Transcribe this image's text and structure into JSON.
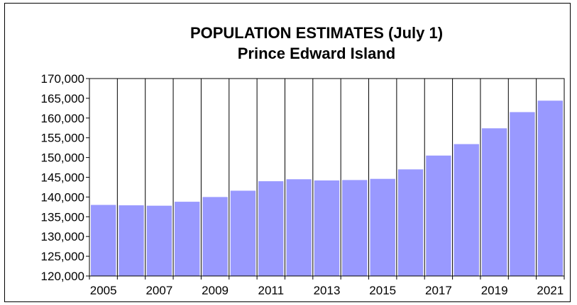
{
  "chart_data": {
    "type": "bar",
    "title": "POPULATION ESTIMATES (July 1)",
    "subtitle": "Prince Edward Island",
    "xlabel": "",
    "ylabel": "",
    "categories": [
      "2005",
      "2006",
      "2007",
      "2008",
      "2009",
      "2010",
      "2011",
      "2012",
      "2013",
      "2014",
      "2015",
      "2016",
      "2017",
      "2018",
      "2019",
      "2020",
      "2021"
    ],
    "values": [
      138000,
      137900,
      137800,
      138800,
      140000,
      141600,
      144000,
      144500,
      144200,
      144300,
      144600,
      147000,
      150500,
      153400,
      157400,
      161500,
      164400
    ],
    "x_tick_labels": [
      "2005",
      "2007",
      "2009",
      "2011",
      "2013",
      "2015",
      "2017",
      "2019",
      "2021"
    ],
    "y_tick_labels": [
      "120,000",
      "125,000",
      "130,000",
      "135,000",
      "140,000",
      "145,000",
      "150,000",
      "155,000",
      "160,000",
      "165,000",
      "170,000"
    ],
    "ylim": [
      120000,
      170000
    ],
    "grid": "vertical",
    "legend": "none",
    "colors": {
      "bar": "#9999ff",
      "grid": "#000000",
      "background": "#ffffff"
    }
  }
}
